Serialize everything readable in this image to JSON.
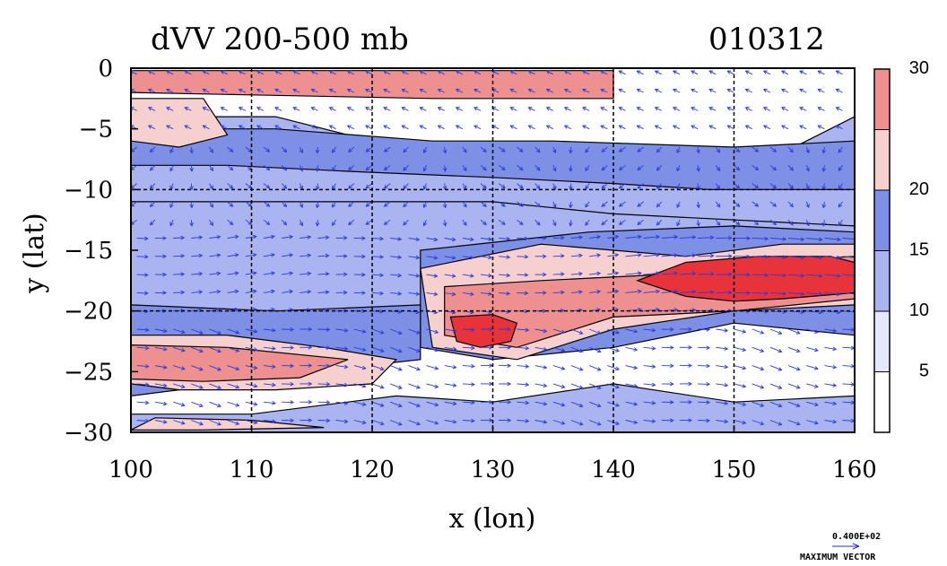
{
  "chart_data": {
    "type": "heatmap",
    "title": "dVV 200-500 mb",
    "date_label": "010312",
    "xlabel": "x (lon)",
    "ylabel": "y (lat)",
    "xlim": [
      100,
      160
    ],
    "ylim": [
      -30,
      0
    ],
    "x_ticks": [
      100,
      110,
      120,
      130,
      140,
      150,
      160
    ],
    "x_tick_labels": [
      "100",
      "110",
      "120",
      "130",
      "140",
      "150",
      "160"
    ],
    "y_ticks": [
      0,
      -5,
      -10,
      -15,
      -20,
      -25,
      -30
    ],
    "y_tick_labels": [
      "0",
      "−5",
      "−10",
      "−15",
      "−20",
      "−25",
      "−30"
    ],
    "grid": true,
    "grid_x": [
      110,
      120,
      130,
      140,
      150
    ],
    "grid_y": [
      -10,
      -20
    ],
    "colorbar": {
      "levels": [
        0,
        5,
        10,
        15,
        20,
        25,
        30
      ],
      "labels": [
        {
          "value": 5,
          "text": "5"
        },
        {
          "value": 10,
          "text": "10"
        },
        {
          "value": 15,
          "text": "15"
        },
        {
          "value": 20,
          "text": "20"
        },
        {
          "value": 30,
          "text": "30"
        }
      ],
      "colors": [
        "#ffffff",
        "#e6e9fb",
        "#aab4f0",
        "#7e8fe6",
        "#f6cfcf",
        "#ef9090",
        "#e8333b"
      ]
    },
    "regions": [
      {
        "level": 2,
        "pts": [
          [
            100,
            -4
          ],
          [
            112,
            -4
          ],
          [
            120,
            -6
          ],
          [
            130,
            -7
          ],
          [
            140,
            -8
          ],
          [
            148,
            -9
          ],
          [
            152,
            -8
          ],
          [
            156,
            -6
          ],
          [
            160,
            -4
          ],
          [
            160,
            -13
          ],
          [
            150,
            -13
          ],
          [
            140,
            -12
          ],
          [
            130,
            -12
          ],
          [
            120,
            -11.5
          ],
          [
            110,
            -11.5
          ],
          [
            100,
            -11
          ]
        ]
      },
      {
        "level": 2,
        "pts": [
          [
            100,
            -11
          ],
          [
            130,
            -11
          ],
          [
            140,
            -12
          ],
          [
            160,
            -13
          ],
          [
            160,
            -21
          ],
          [
            140,
            -20
          ],
          [
            130,
            -19
          ],
          [
            120,
            -20
          ],
          [
            100,
            -21
          ]
        ]
      },
      {
        "level": 3,
        "pts": [
          [
            100,
            -5
          ],
          [
            112,
            -5
          ],
          [
            125,
            -6
          ],
          [
            135,
            -6
          ],
          [
            150,
            -6.5
          ],
          [
            160,
            -6
          ],
          [
            160,
            -10
          ],
          [
            148,
            -10
          ],
          [
            140,
            -9.5
          ],
          [
            130,
            -9
          ],
          [
            118,
            -8.5
          ],
          [
            108,
            -8
          ],
          [
            100,
            -8
          ]
        ]
      },
      {
        "level": 3,
        "pts": [
          [
            124,
            -15
          ],
          [
            138,
            -13.5
          ],
          [
            150,
            -13
          ],
          [
            160,
            -13.5
          ],
          [
            160,
            -22
          ],
          [
            150,
            -21
          ],
          [
            140,
            -23
          ],
          [
            130,
            -24
          ],
          [
            124,
            -23
          ]
        ]
      },
      {
        "level": 3,
        "pts": [
          [
            100,
            -19.5
          ],
          [
            112,
            -20
          ],
          [
            124,
            -19.5
          ],
          [
            124,
            -24
          ],
          [
            115,
            -25
          ],
          [
            108,
            -26
          ],
          [
            100,
            -27
          ]
        ]
      },
      {
        "level": 4,
        "pts": [
          [
            100,
            -22
          ],
          [
            108,
            -22
          ],
          [
            116,
            -23
          ],
          [
            122,
            -24
          ],
          [
            120,
            -26
          ],
          [
            112,
            -26.5
          ],
          [
            104,
            -26.5
          ],
          [
            100,
            -26
          ]
        ]
      },
      {
        "level": 4,
        "pts": [
          [
            124,
            -16.5
          ],
          [
            134,
            -14.5
          ],
          [
            146,
            -15.5
          ],
          [
            154,
            -14.5
          ],
          [
            160,
            -14.5
          ],
          [
            160,
            -19.5
          ],
          [
            150,
            -20
          ],
          [
            140,
            -21.5
          ],
          [
            132,
            -24
          ],
          [
            125,
            -23
          ]
        ]
      },
      {
        "level": 5,
        "pts": [
          [
            100,
            -22.8
          ],
          [
            108,
            -23
          ],
          [
            118,
            -24
          ],
          [
            114,
            -25.5
          ],
          [
            106,
            -25.8
          ],
          [
            100,
            -25.6
          ]
        ]
      },
      {
        "level": 5,
        "pts": [
          [
            126,
            -18
          ],
          [
            134,
            -17.5
          ],
          [
            144,
            -17
          ],
          [
            152,
            -16
          ],
          [
            160,
            -15.5
          ],
          [
            160,
            -19
          ],
          [
            150,
            -20
          ],
          [
            140,
            -20.5
          ],
          [
            132,
            -23
          ],
          [
            126,
            -22
          ]
        ]
      },
      {
        "level": 6,
        "pts": [
          [
            126.5,
            -20.5
          ],
          [
            130,
            -20.3
          ],
          [
            132,
            -21
          ],
          [
            131.5,
            -22.5
          ],
          [
            129,
            -23
          ],
          [
            127,
            -22.5
          ]
        ]
      },
      {
        "level": 6,
        "pts": [
          [
            142,
            -17.5
          ],
          [
            146,
            -16
          ],
          [
            152,
            -15.5
          ],
          [
            158,
            -15.5
          ],
          [
            160,
            -16
          ],
          [
            160,
            -18.5
          ],
          [
            154,
            -19
          ],
          [
            150,
            -19.2
          ],
          [
            146,
            -18.8
          ]
        ]
      },
      {
        "level": 5,
        "pts": [
          [
            100,
            -0.2
          ],
          [
            110,
            -0.2
          ],
          [
            125,
            -0.2
          ],
          [
            140,
            -0.2
          ],
          [
            140,
            -2.5
          ],
          [
            125,
            -2.5
          ],
          [
            110,
            -2.2
          ],
          [
            100,
            -2
          ]
        ]
      },
      {
        "level": 4,
        "pts": [
          [
            100,
            -2.5
          ],
          [
            106,
            -2.5
          ],
          [
            108,
            -5.5
          ],
          [
            104,
            -6.5
          ],
          [
            100,
            -6
          ]
        ]
      },
      {
        "level": 2,
        "pts": [
          [
            122,
            -27
          ],
          [
            130,
            -27.5
          ],
          [
            140,
            -26
          ],
          [
            150,
            -27.5
          ],
          [
            160,
            -27
          ],
          [
            160,
            -30
          ],
          [
            100,
            -30
          ],
          [
            100,
            -28.5
          ],
          [
            110,
            -28.5
          ]
        ]
      },
      {
        "level": 4,
        "pts": [
          [
            102,
            -28.8
          ],
          [
            110,
            -29
          ],
          [
            116,
            -29.6
          ],
          [
            106,
            -29.8
          ],
          [
            100,
            -29.8
          ]
        ]
      }
    ],
    "vector_reference": {
      "value_label": "0.400E+02",
      "label": "MAXIMUM VECTOR"
    }
  }
}
